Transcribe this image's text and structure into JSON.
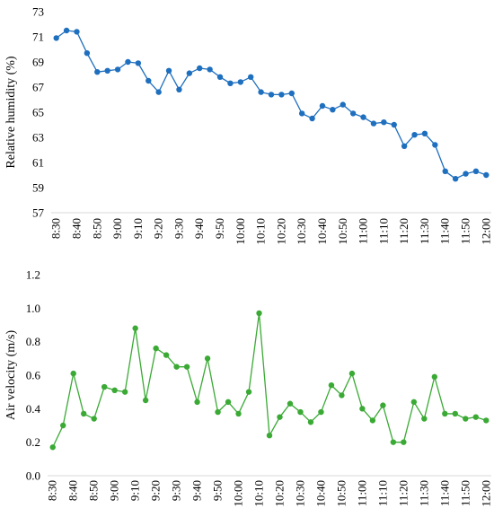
{
  "chart_data": [
    {
      "type": "line",
      "title": "",
      "xlabel": "",
      "ylabel": "Relative humidity (%)",
      "ylim": [
        57,
        73
      ],
      "yticks": [
        57,
        59,
        61,
        63,
        65,
        67,
        69,
        71,
        73
      ],
      "color": "#1f6fbf",
      "grid": false,
      "x_tick_labels": [
        "8:30",
        "8:40",
        "8:50",
        "9:00",
        "9:10",
        "9:20",
        "9:30",
        "9:40",
        "9:50",
        "10:00",
        "10:10",
        "10:20",
        "10:30",
        "10:40",
        "10:50",
        "11:00",
        "11:10",
        "11:20",
        "11:30",
        "11:40",
        "11:50",
        "12:00"
      ],
      "series": [
        {
          "x": [
            "8:30",
            "8:35",
            "8:40",
            "8:45",
            "8:50",
            "8:55",
            "9:00",
            "9:05",
            "9:10",
            "9:15",
            "9:20",
            "9:25",
            "9:30",
            "9:35",
            "9:40",
            "9:45",
            "9:50",
            "9:55",
            "10:00",
            "10:05",
            "10:10",
            "10:15",
            "10:20",
            "10:25",
            "10:30",
            "10:35",
            "10:40",
            "10:45",
            "10:50",
            "10:55",
            "11:00",
            "11:05",
            "11:10",
            "11:15",
            "11:20",
            "11:25",
            "11:30",
            "11:35",
            "11:40",
            "11:45",
            "11:50",
            "11:55",
            "12:00"
          ],
          "values": [
            70.9,
            71.5,
            71.4,
            69.7,
            68.2,
            68.3,
            68.4,
            69.0,
            68.9,
            67.5,
            66.6,
            68.3,
            66.8,
            68.1,
            68.5,
            68.4,
            67.8,
            67.3,
            67.4,
            67.8,
            66.6,
            66.4,
            66.4,
            66.5,
            64.9,
            64.5,
            65.5,
            65.2,
            65.6,
            64.9,
            64.6,
            64.1,
            64.2,
            64.0,
            62.3,
            63.2,
            63.3,
            62.4,
            60.3,
            59.7,
            60.1,
            60.3,
            60.0
          ]
        }
      ]
    },
    {
      "type": "line",
      "title": "",
      "xlabel": "",
      "ylabel": "Air velocity (m/s)",
      "ylim": [
        0.0,
        1.2
      ],
      "yticks": [
        "0.0",
        "0.2",
        "0.4",
        "0.6",
        "0.8",
        "1.0",
        "1.2"
      ],
      "color": "#3aaa35",
      "grid": false,
      "x_tick_labels": [
        "8:30",
        "8:40",
        "8:50",
        "9:00",
        "9:10",
        "9:20",
        "9:30",
        "9:40",
        "9:50",
        "10:00",
        "10:10",
        "10:20",
        "10:30",
        "10:40",
        "10:50",
        "11:00",
        "11:10",
        "11:20",
        "11:30",
        "11:40",
        "11:50",
        "12:00"
      ],
      "series": [
        {
          "x": [
            "8:30",
            "8:35",
            "8:40",
            "8:45",
            "8:50",
            "8:55",
            "9:00",
            "9:05",
            "9:10",
            "9:15",
            "9:20",
            "9:25",
            "9:30",
            "9:35",
            "9:40",
            "9:45",
            "9:50",
            "9:55",
            "10:00",
            "10:05",
            "10:10",
            "10:15",
            "10:20",
            "10:25",
            "10:30",
            "10:35",
            "10:40",
            "10:45",
            "10:50",
            "10:55",
            "11:00",
            "11:05",
            "11:10",
            "11:15",
            "11:20",
            "11:25",
            "11:30",
            "11:35",
            "11:40",
            "11:45",
            "11:50",
            "11:55",
            "12:00"
          ],
          "values": [
            0.17,
            0.3,
            0.61,
            0.37,
            0.34,
            0.53,
            0.51,
            0.5,
            0.88,
            0.45,
            0.76,
            0.72,
            0.65,
            0.65,
            0.44,
            0.7,
            0.38,
            0.44,
            0.37,
            0.5,
            0.97,
            0.24,
            0.35,
            0.43,
            0.38,
            0.32,
            0.38,
            0.54,
            0.48,
            0.61,
            0.4,
            0.33,
            0.42,
            0.2,
            0.2,
            0.44,
            0.34,
            0.59,
            0.37,
            0.37,
            0.34,
            0.35,
            0.33
          ]
        }
      ]
    }
  ]
}
